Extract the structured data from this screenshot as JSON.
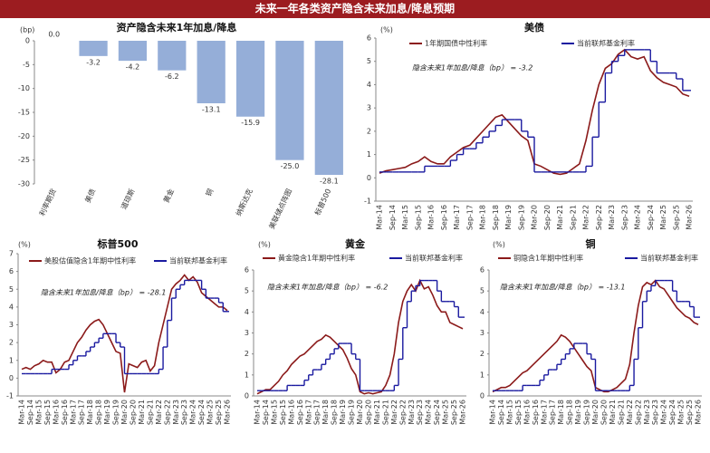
{
  "header": {
    "title": "未来一年各类资产隐含未来加息/降息预期"
  },
  "chart_data": [
    {
      "type": "bar",
      "title": "资产隐含未来1年加息/降息",
      "y_label": "(bp)",
      "categories": [
        "利率期货",
        "美债",
        "道琼斯",
        "黄金",
        "铜",
        "纳斯达克",
        "美联储点阵图",
        "标普500"
      ],
      "values": [
        0.0,
        -3.2,
        -4.2,
        -6.2,
        -13.1,
        -15.9,
        -25.0,
        -28.1
      ],
      "value_labels": [
        "0.0",
        "-3.2",
        "-4.2",
        "-6.2",
        "-13.1",
        "-15.9",
        "-25.0",
        "-28.1"
      ],
      "color": "#95aed8",
      "ylim": [
        -30,
        0
      ],
      "yticks": [
        0,
        -5,
        -10,
        -15,
        -20,
        -25,
        -30
      ]
    },
    {
      "type": "line",
      "title": "美债",
      "y_label": "(%)",
      "annotation": "隐含未来1年加息/降息（bp） = -3.2",
      "categories": [
        "Mar-14",
        null,
        "Sep-14",
        null,
        "Mar-15",
        null,
        "Sep-15",
        null,
        "Mar-16",
        null,
        "Sep-16",
        null,
        "Mar-17",
        null,
        "Sep-17",
        null,
        "Mar-18",
        null,
        "Sep-18",
        null,
        "Mar-19",
        null,
        "Sep-19",
        null,
        "Mar-20",
        null,
        "Sep-20",
        null,
        "Mar-21",
        null,
        "Sep-21",
        null,
        "Mar-22",
        null,
        "Sep-22",
        null,
        "Mar-23",
        null,
        "Sep-23",
        null,
        "Mar-24",
        null,
        "Sep-24",
        null,
        "Mar-25",
        null,
        "Sep-25",
        null,
        "Mar-26"
      ],
      "ylim": [
        -1,
        6
      ],
      "yticks": [
        -1,
        0,
        1,
        2,
        3,
        4,
        5,
        6
      ],
      "series": [
        {
          "name": "1年期国债中性利率",
          "color": "#8b1a1a",
          "values": [
            0.2,
            0.3,
            0.35,
            0.4,
            0.45,
            0.6,
            0.7,
            0.9,
            0.7,
            0.6,
            0.6,
            0.9,
            1.1,
            1.3,
            1.4,
            1.7,
            2.0,
            2.3,
            2.6,
            2.7,
            2.4,
            2.1,
            1.8,
            1.6,
            0.6,
            0.5,
            0.35,
            0.2,
            0.15,
            0.2,
            0.4,
            0.6,
            1.6,
            2.9,
            4.0,
            4.7,
            4.9,
            5.3,
            5.5,
            5.2,
            5.1,
            5.2,
            4.6,
            4.3,
            4.1,
            4.0,
            3.9,
            3.6,
            3.5
          ]
        },
        {
          "name": "当前联邦基金利率",
          "color": "#1a1aa0",
          "step": true,
          "values": [
            0.25,
            0.25,
            0.25,
            0.25,
            0.25,
            0.25,
            0.25,
            0.5,
            0.5,
            0.5,
            0.5,
            0.75,
            1,
            1.25,
            1.25,
            1.5,
            1.75,
            2,
            2.25,
            2.5,
            2.5,
            2.5,
            2,
            1.75,
            0.25,
            0.25,
            0.25,
            0.25,
            0.25,
            0.25,
            0.25,
            0.25,
            0.5,
            1.75,
            3.25,
            4.5,
            5,
            5.25,
            5.5,
            5.5,
            5.5,
            5.5,
            5,
            4.5,
            4.5,
            4.5,
            4.25,
            3.75,
            3.75
          ]
        }
      ]
    },
    {
      "type": "line",
      "title": "标普500",
      "y_label": "(%)",
      "annotation": "隐含未来1年加息/降息（bp） = -28.1",
      "categories": [
        "Mar-14",
        null,
        "Sep-14",
        null,
        "Mar-15",
        null,
        "Sep-15",
        null,
        "Mar-16",
        null,
        "Sep-16",
        null,
        "Mar-17",
        null,
        "Sep-17",
        null,
        "Mar-18",
        null,
        "Sep-18",
        null,
        "Mar-19",
        null,
        "Sep-19",
        null,
        "Mar-20",
        null,
        "Sep-20",
        null,
        "Mar-21",
        null,
        "Sep-21",
        null,
        "Mar-22",
        null,
        "Sep-22",
        null,
        "Mar-23",
        null,
        "Sep-23",
        null,
        "Mar-24",
        null,
        "Sep-24",
        null,
        "Mar-25",
        null,
        "Sep-25",
        null,
        "Mar-26"
      ],
      "ylim": [
        -1,
        7
      ],
      "yticks": [
        -1,
        0,
        1,
        2,
        3,
        4,
        5,
        6,
        7
      ],
      "series": [
        {
          "name": "美股估值隐含1年期中性利率",
          "color": "#8b1a1a",
          "values": [
            0.5,
            0.6,
            0.5,
            0.7,
            0.8,
            1.0,
            0.9,
            0.9,
            0.3,
            0.5,
            0.9,
            1.0,
            1.5,
            2.0,
            2.3,
            2.7,
            3.0,
            3.2,
            3.3,
            3.0,
            2.5,
            2.0,
            1.5,
            1.4,
            -0.8,
            0.8,
            0.7,
            0.6,
            0.9,
            1.0,
            0.4,
            0.7,
            2.0,
            3.0,
            4.0,
            5.0,
            5.3,
            5.5,
            5.8,
            5.5,
            5.7,
            5.4,
            4.8,
            4.6,
            4.4,
            4.2,
            4.0,
            4.0,
            3.8
          ]
        },
        {
          "name": "当前联邦基金利率",
          "color": "#1a1aa0",
          "step": true,
          "values": [
            0.25,
            0.25,
            0.25,
            0.25,
            0.25,
            0.25,
            0.25,
            0.5,
            0.5,
            0.5,
            0.5,
            0.75,
            1,
            1.25,
            1.25,
            1.5,
            1.75,
            2,
            2.25,
            2.5,
            2.5,
            2.5,
            2,
            1.75,
            0.25,
            0.25,
            0.25,
            0.25,
            0.25,
            0.25,
            0.25,
            0.25,
            0.5,
            1.75,
            3.25,
            4.5,
            5,
            5.25,
            5.5,
            5.5,
            5.5,
            5.5,
            5,
            4.5,
            4.5,
            4.5,
            4.25,
            3.75,
            3.75
          ]
        }
      ]
    },
    {
      "type": "line",
      "title": "黄金",
      "y_label": "(%)",
      "annotation": "隐含未来1年加息/降息（bp） = -6.2",
      "categories": [
        "Mar-14",
        null,
        "Sep-14",
        null,
        "Mar-15",
        null,
        "Sep-15",
        null,
        "Mar-16",
        null,
        "Sep-16",
        null,
        "Mar-17",
        null,
        "Sep-17",
        null,
        "Mar-18",
        null,
        "Sep-18",
        null,
        "Mar-19",
        null,
        "Sep-19",
        null,
        "Mar-20",
        null,
        "Sep-20",
        null,
        "Mar-21",
        null,
        "Sep-21",
        null,
        "Mar-22",
        null,
        "Sep-22",
        null,
        "Mar-23",
        null,
        "Sep-23",
        null,
        "Mar-24",
        null,
        "Sep-24",
        null,
        "Mar-25",
        null,
        "Sep-25",
        null,
        "Mar-26"
      ],
      "ylim": [
        0,
        6
      ],
      "yticks": [
        0,
        1,
        2,
        3,
        4,
        5,
        6
      ],
      "series": [
        {
          "name": "黄金隐含1年期中性利率",
          "color": "#8b1a1a",
          "values": [
            0.1,
            0.2,
            0.3,
            0.3,
            0.5,
            0.7,
            1.0,
            1.2,
            1.5,
            1.7,
            1.9,
            2.0,
            2.2,
            2.4,
            2.6,
            2.7,
            2.9,
            2.8,
            2.6,
            2.4,
            2.2,
            1.8,
            1.3,
            1.0,
            0.2,
            0.1,
            0.15,
            0.1,
            0.15,
            0.2,
            0.5,
            1.0,
            2.0,
            3.5,
            4.5,
            5.0,
            5.3,
            5.0,
            5.5,
            5.1,
            5.2,
            4.8,
            4.3,
            4.0,
            4.0,
            3.5,
            3.4,
            3.3,
            3.2
          ]
        },
        {
          "name": "当前联邦基金利率",
          "color": "#1a1aa0",
          "step": true,
          "values": [
            0.25,
            0.25,
            0.25,
            0.25,
            0.25,
            0.25,
            0.25,
            0.5,
            0.5,
            0.5,
            0.5,
            0.75,
            1,
            1.25,
            1.25,
            1.5,
            1.75,
            2,
            2.25,
            2.5,
            2.5,
            2.5,
            2,
            1.75,
            0.25,
            0.25,
            0.25,
            0.25,
            0.25,
            0.25,
            0.25,
            0.25,
            0.5,
            1.75,
            3.25,
            4.5,
            5,
            5.25,
            5.5,
            5.5,
            5.5,
            5.5,
            5,
            4.5,
            4.5,
            4.5,
            4.25,
            3.75,
            3.75
          ]
        }
      ]
    },
    {
      "type": "line",
      "title": "铜",
      "y_label": "(%)",
      "annotation": "隐含未来1年加息/降息（bp） = -13.1",
      "categories": [
        "Mar-14",
        null,
        "Sep-14",
        null,
        "Mar-15",
        null,
        "Sep-15",
        null,
        "Mar-16",
        null,
        "Sep-16",
        null,
        "Mar-17",
        null,
        "Sep-17",
        null,
        "Mar-18",
        null,
        "Sep-18",
        null,
        "Mar-19",
        null,
        "Sep-19",
        null,
        "Mar-20",
        null,
        "Sep-20",
        null,
        "Mar-21",
        null,
        "Sep-21",
        null,
        "Mar-22",
        null,
        "Sep-22",
        null,
        "Mar-23",
        null,
        "Sep-23",
        null,
        "Mar-24",
        null,
        "Sep-24",
        null,
        "Mar-25",
        null,
        "Sep-25",
        null,
        "Mar-26"
      ],
      "ylim": [
        0,
        6
      ],
      "yticks": [
        0,
        1,
        2,
        3,
        4,
        5,
        6
      ],
      "series": [
        {
          "name": "铜隐含1年期中性利率",
          "color": "#8b1a1a",
          "values": [
            0.2,
            0.3,
            0.4,
            0.4,
            0.5,
            0.7,
            0.9,
            1.1,
            1.2,
            1.4,
            1.6,
            1.8,
            2.0,
            2.2,
            2.4,
            2.6,
            2.9,
            2.8,
            2.6,
            2.3,
            2.0,
            1.7,
            1.4,
            1.2,
            0.4,
            0.3,
            0.2,
            0.2,
            0.3,
            0.4,
            0.6,
            0.8,
            1.5,
            3.0,
            4.3,
            5.2,
            5.4,
            5.3,
            5.5,
            5.2,
            5.1,
            4.8,
            4.5,
            4.2,
            4.0,
            3.8,
            3.7,
            3.5,
            3.4
          ]
        },
        {
          "name": "当前联邦基金利率",
          "color": "#1a1aa0",
          "step": true,
          "values": [
            0.25,
            0.25,
            0.25,
            0.25,
            0.25,
            0.25,
            0.25,
            0.5,
            0.5,
            0.5,
            0.5,
            0.75,
            1,
            1.25,
            1.25,
            1.5,
            1.75,
            2,
            2.25,
            2.5,
            2.5,
            2.5,
            2,
            1.75,
            0.25,
            0.25,
            0.25,
            0.25,
            0.25,
            0.25,
            0.25,
            0.25,
            0.5,
            1.75,
            3.25,
            4.5,
            5,
            5.25,
            5.5,
            5.5,
            5.5,
            5.5,
            5,
            4.5,
            4.5,
            4.5,
            4.25,
            3.75,
            3.75
          ]
        }
      ]
    }
  ]
}
